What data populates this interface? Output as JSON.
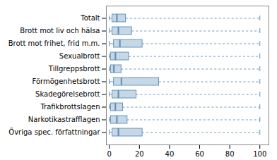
{
  "chart_data": {
    "type": "box",
    "orientation": "horizontal",
    "categories": [
      "Totalt",
      "Brott mot liv och hälsa",
      "Brott mot frihet, frid m.m.",
      "Sexualbrott",
      "Tillgreppsbrott",
      "Förmögenhetsbrott",
      "Skadegörelsebrott",
      "Trafikbrottslagen",
      "Narkotikastrafflagen",
      "Övriga spec. författningar"
    ],
    "min": [
      0,
      0,
      0,
      0,
      0,
      0,
      0,
      0,
      0,
      0
    ],
    "q1": [
      2,
      2,
      3,
      1,
      1,
      3,
      2,
      1,
      1,
      2
    ],
    "median": [
      5,
      6,
      7,
      4,
      3,
      8,
      6,
      4,
      5,
      6
    ],
    "q3": [
      11,
      15,
      22,
      13,
      8,
      33,
      18,
      9,
      12,
      22
    ],
    "max": [
      100,
      100,
      100,
      100,
      100,
      100,
      100,
      100,
      100,
      100
    ],
    "xlim": [
      -2,
      106
    ],
    "xticks": [
      0,
      20,
      40,
      60,
      80,
      100
    ],
    "color": "#5b8db8",
    "grid": false
  }
}
